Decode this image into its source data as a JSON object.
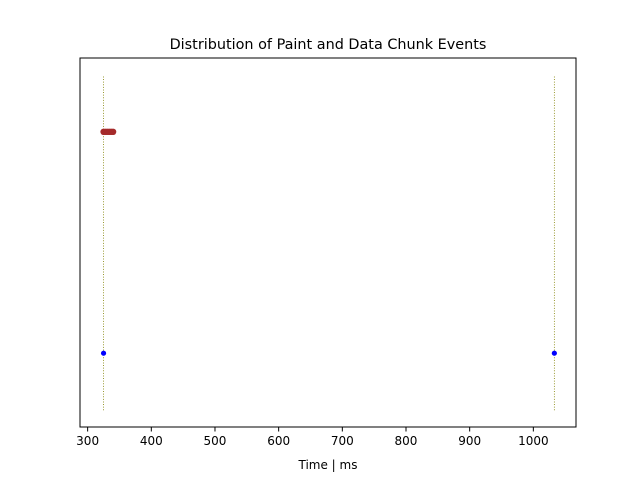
{
  "chart_data": {
    "type": "scatter",
    "title": "Distribution of Paint and Data Chunk Events",
    "xlabel": "Time | ms",
    "ylabel": "",
    "xlim": [
      288,
      1067
    ],
    "ylim": [
      0,
      1
    ],
    "x_ticks": [
      300,
      400,
      500,
      600,
      700,
      800,
      900,
      1000
    ],
    "y_ticks_visible": false,
    "grid": false,
    "legend": "none",
    "series": [
      {
        "color": "#a52a2a",
        "y": 0.8,
        "x": [
          325,
          328,
          331,
          334,
          337,
          340
        ]
      },
      {
        "color": "#0000ff",
        "y": 0.2,
        "x": [
          325,
          1033
        ]
      }
    ],
    "vertical_lines": {
      "color": "#808000",
      "style": "dotted",
      "x": [
        325,
        1033
      ]
    }
  }
}
